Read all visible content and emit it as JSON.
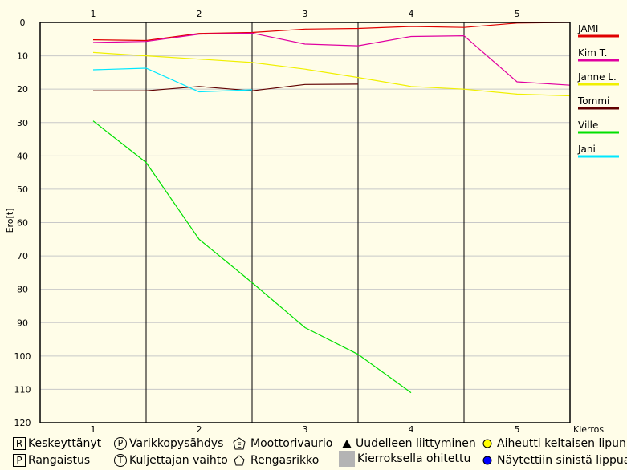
{
  "chart_data": {
    "type": "line",
    "ylabel": "Ero[t]",
    "xlabel": "Kierros",
    "ylim": [
      0,
      120
    ],
    "y_ticks": [
      "0",
      "10",
      "20",
      "30",
      "40",
      "50",
      "60",
      "70",
      "80",
      "90",
      "100",
      "110",
      "120"
    ],
    "x_ticks": [
      "1",
      "2",
      "3",
      "4",
      "5"
    ],
    "y_inverted": true,
    "grid": true,
    "legend_position": "right",
    "series": [
      {
        "name": "JAMI",
        "color": "#e00000",
        "x": [
          1,
          1.5,
          2,
          2.5,
          3,
          3.5,
          4,
          4.5,
          5,
          5.5
        ],
        "y": [
          5.2,
          5.4,
          3.3,
          3.0,
          2.0,
          1.8,
          1.2,
          1.5,
          0.2,
          0.0
        ]
      },
      {
        "name": "Kim T.",
        "color": "#e000a0",
        "x": [
          1,
          1.5,
          2,
          2.5,
          3,
          3.5,
          4,
          4.5,
          5,
          5.5
        ],
        "y": [
          6.0,
          5.7,
          3.5,
          3.2,
          6.5,
          7.0,
          4.2,
          4.0,
          17.8,
          18.8
        ]
      },
      {
        "name": "Janne L.",
        "color": "#f0f000",
        "x": [
          1,
          1.5,
          2,
          2.5,
          3,
          3.5,
          4,
          4.5,
          5,
          5.5
        ],
        "y": [
          9.0,
          10.0,
          11.0,
          12.0,
          14.0,
          16.5,
          19.2,
          20.0,
          21.5,
          22.0
        ]
      },
      {
        "name": "Tommi",
        "color": "#600000",
        "x": [
          1,
          1.5,
          2,
          2.5,
          3,
          3.5
        ],
        "y": [
          20.5,
          20.5,
          19.2,
          20.5,
          18.6,
          18.5
        ]
      },
      {
        "name": "Ville",
        "color": "#00e000",
        "x": [
          1,
          1.5,
          2,
          2.5,
          3,
          3.5,
          4
        ],
        "y": [
          29.5,
          42.0,
          65.0,
          78.0,
          91.5,
          99.5,
          111.0
        ]
      },
      {
        "name": "Jani",
        "color": "#00e8ff",
        "x": [
          1,
          1.5,
          2,
          2.5
        ],
        "y": [
          14.2,
          13.7,
          20.8,
          20.2
        ]
      }
    ]
  },
  "footer": {
    "row1": {
      "retired": "Keskeyttänyt",
      "pitstop": "Varikkopysähdys",
      "engine": "Moottorivaurio",
      "rejoin": "Uudelleen liittyminen",
      "yellow": "Aiheutti keltaisen lipun"
    },
    "row2": {
      "penalty": "Rangaistus",
      "driverchange": "Kuljettajan vaihto",
      "tyre": "Rengasrikko",
      "lapped": "Kierroksella ohitettu",
      "blue": "Näytettiin sinistä lippua"
    },
    "icon_letters": {
      "R": "R",
      "P": "P",
      "E": "E",
      "T": "T"
    }
  }
}
